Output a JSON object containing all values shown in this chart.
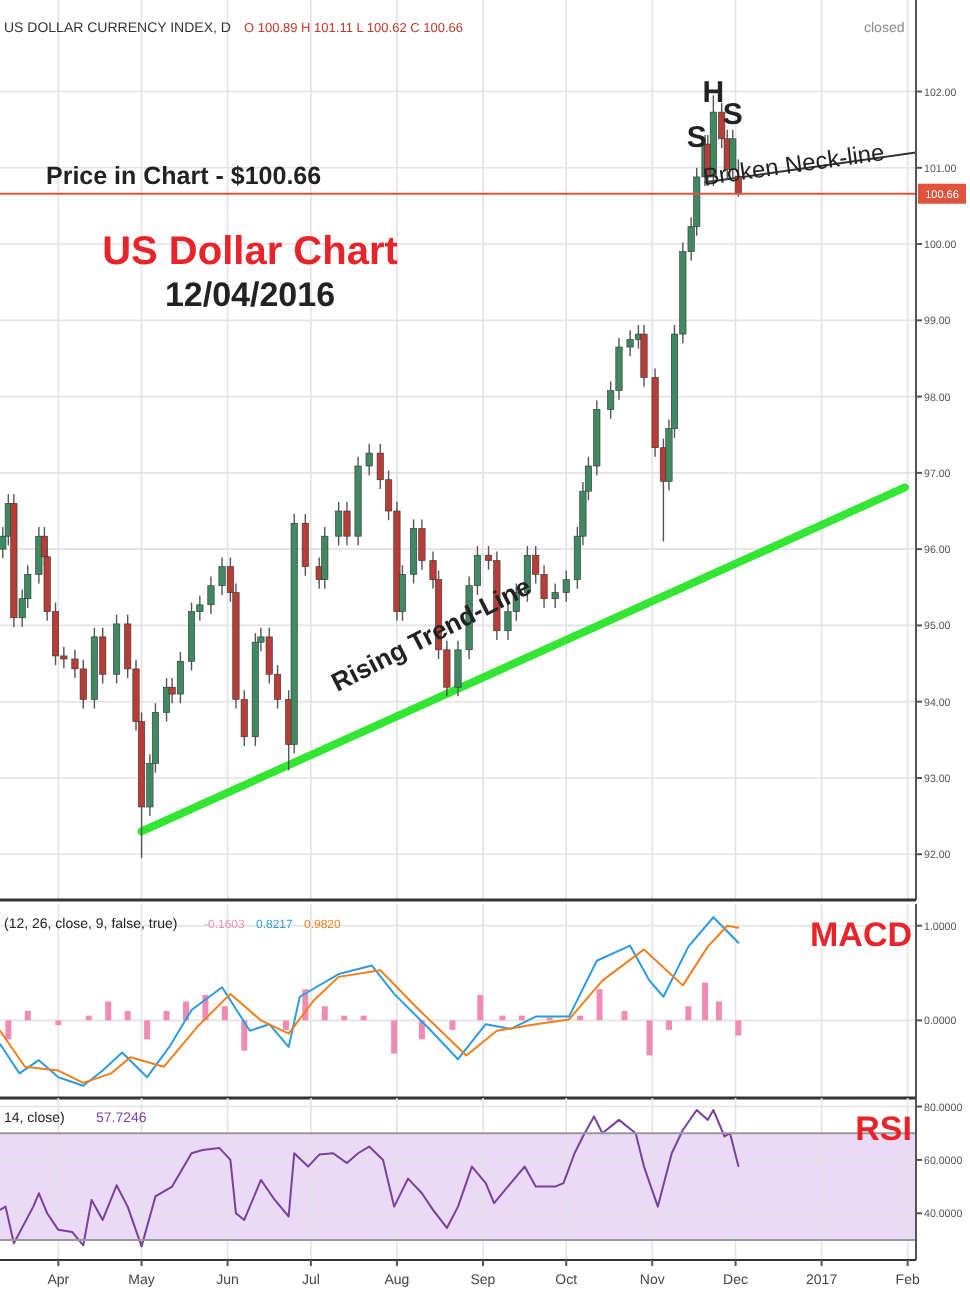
{
  "chart_data": [
    {
      "type": "candlestick",
      "title": "US Dollar Chart",
      "subtitle": "12/04/2016",
      "grid": true,
      "tick_labels": "y",
      "xlim": [
        "2016-03-11",
        "2017-02-04"
      ],
      "xticks": [
        {
          "value": "2016-04-01",
          "label": null
        },
        {
          "value": "2016-05-01",
          "label": null
        },
        {
          "value": "2016-06-01",
          "label": null
        },
        {
          "value": "2016-07-01",
          "label": null
        },
        {
          "value": "2016-08-01",
          "label": null
        },
        {
          "value": "2016-09-01",
          "label": null
        },
        {
          "value": "2016-10-01",
          "label": null
        },
        {
          "value": "2016-11-01",
          "label": null
        },
        {
          "value": "2016-12-01",
          "label": null
        },
        {
          "value": "2017-01-01",
          "label": null
        },
        {
          "value": "2017-02-01",
          "label": null
        }
      ],
      "ylim": [
        91.4,
        103.2
      ],
      "yticks": [
        {
          "value": 92,
          "label": "92.00"
        },
        {
          "value": 93,
          "label": "93.00"
        },
        {
          "value": 94,
          "label": "94.00"
        },
        {
          "value": 95,
          "label": "95.00"
        },
        {
          "value": 96,
          "label": "96.00"
        },
        {
          "value": 97,
          "label": "97.00"
        },
        {
          "value": 98,
          "label": "98.00"
        },
        {
          "value": 99,
          "label": "99.00"
        },
        {
          "value": 100,
          "label": "100.00"
        },
        {
          "value": 101,
          "label": "101.00"
        },
        {
          "value": 102,
          "label": "102.00"
        }
      ],
      "x": [
        "2016-03-12",
        "2016-03-14",
        "2016-03-16",
        "2016-03-19",
        "2016-03-21",
        "2016-03-25",
        "2016-03-27",
        "2016-03-28",
        "2016-03-31",
        "2016-04-03",
        "2016-04-07",
        "2016-04-10",
        "2016-04-14",
        "2016-04-17",
        "2016-04-22",
        "2016-04-26",
        "2016-04-29",
        "2016-05-01",
        "2016-05-04",
        "2016-05-06",
        "2016-05-10",
        "2016-05-12",
        "2016-05-15",
        "2016-05-19",
        "2016-05-22",
        "2016-05-26",
        "2016-05-30",
        "2016-06-02",
        "2016-06-04",
        "2016-06-07",
        "2016-06-11",
        "2016-06-13",
        "2016-06-16",
        "2016-06-19",
        "2016-06-23",
        "2016-06-25",
        "2016-06-29",
        "2016-07-04",
        "2016-07-06",
        "2016-07-11",
        "2016-07-14",
        "2016-07-18",
        "2016-07-22",
        "2016-07-26",
        "2016-07-29",
        "2016-08-01",
        "2016-08-03",
        "2016-08-07",
        "2016-08-10",
        "2016-08-14",
        "2016-08-16",
        "2016-08-19",
        "2016-08-23",
        "2016-08-27",
        "2016-08-30",
        "2016-09-03",
        "2016-09-06",
        "2016-09-10",
        "2016-09-13",
        "2016-09-17",
        "2016-09-20",
        "2016-09-23",
        "2016-09-27",
        "2016-10-01",
        "2016-10-05",
        "2016-10-07",
        "2016-10-09",
        "2016-10-12",
        "2016-10-17",
        "2016-10-20",
        "2016-10-24",
        "2016-10-27",
        "2016-10-29",
        "2016-11-02",
        "2016-11-05",
        "2016-11-07",
        "2016-11-09",
        "2016-11-12",
        "2016-11-15",
        "2016-11-17",
        "2016-11-20",
        "2016-11-21",
        "2016-11-23",
        "2016-11-26",
        "2016-11-28",
        "2016-11-30",
        "2016-12-02"
      ],
      "ohlc": [
        [
          96.0,
          96.29,
          95.88,
          96.17
        ],
        [
          96.17,
          96.72,
          96.05,
          96.6
        ],
        [
          96.6,
          96.72,
          94.98,
          95.1
        ],
        [
          95.1,
          95.47,
          94.98,
          95.35
        ],
        [
          95.35,
          95.79,
          95.23,
          95.67
        ],
        [
          95.67,
          96.29,
          95.55,
          96.17
        ],
        [
          96.17,
          96.29,
          95.78,
          95.9
        ],
        [
          95.9,
          96.02,
          95.06,
          95.18
        ],
        [
          95.18,
          95.3,
          94.48,
          94.6
        ],
        [
          94.6,
          94.72,
          94.44,
          94.56
        ],
        [
          94.56,
          94.68,
          94.31,
          94.43
        ],
        [
          94.43,
          94.55,
          93.91,
          94.03
        ],
        [
          94.03,
          94.97,
          93.91,
          94.85
        ],
        [
          94.85,
          94.97,
          94.24,
          94.36
        ],
        [
          94.36,
          95.14,
          94.24,
          95.02
        ],
        [
          95.02,
          95.14,
          94.31,
          94.43
        ],
        [
          94.43,
          94.55,
          93.62,
          93.74
        ],
        [
          93.74,
          93.86,
          91.95,
          92.62
        ],
        [
          92.62,
          93.31,
          92.5,
          93.19
        ],
        [
          93.19,
          93.98,
          93.07,
          93.86
        ],
        [
          93.86,
          94.31,
          93.74,
          94.19
        ],
        [
          94.19,
          94.31,
          93.98,
          94.1
        ],
        [
          94.1,
          94.65,
          93.98,
          94.53
        ],
        [
          94.53,
          95.3,
          94.41,
          95.18
        ],
        [
          95.18,
          95.39,
          95.06,
          95.27
        ],
        [
          95.27,
          95.64,
          95.15,
          95.52
        ],
        [
          95.52,
          95.89,
          95.4,
          95.77
        ],
        [
          95.77,
          95.89,
          95.31,
          95.43
        ],
        [
          95.43,
          95.55,
          93.91,
          94.03
        ],
        [
          94.03,
          94.15,
          93.42,
          93.54
        ],
        [
          93.54,
          94.9,
          93.42,
          94.78
        ],
        [
          94.78,
          94.97,
          94.66,
          94.85
        ],
        [
          94.85,
          94.97,
          94.24,
          94.36
        ],
        [
          94.36,
          94.48,
          93.91,
          94.03
        ],
        [
          94.03,
          94.15,
          93.1,
          93.44
        ],
        [
          93.44,
          96.46,
          93.32,
          96.34
        ],
        [
          96.34,
          96.46,
          95.65,
          95.77
        ],
        [
          95.77,
          95.89,
          95.48,
          95.6
        ],
        [
          95.6,
          96.29,
          95.48,
          96.17
        ],
        [
          96.17,
          96.62,
          96.05,
          96.5
        ],
        [
          96.5,
          96.62,
          96.05,
          96.17
        ],
        [
          96.17,
          97.21,
          96.05,
          97.09
        ],
        [
          97.09,
          97.38,
          96.97,
          97.26
        ],
        [
          97.26,
          97.38,
          96.79,
          96.91
        ],
        [
          96.91,
          97.03,
          96.38,
          96.5
        ],
        [
          96.5,
          96.62,
          95.06,
          95.18
        ],
        [
          95.18,
          95.79,
          95.06,
          95.67
        ],
        [
          95.67,
          96.39,
          95.55,
          96.27
        ],
        [
          96.27,
          96.39,
          95.73,
          95.85
        ],
        [
          95.85,
          95.97,
          95.48,
          95.6
        ],
        [
          95.6,
          95.72,
          94.56,
          94.68
        ],
        [
          94.68,
          94.8,
          94.07,
          94.19
        ],
        [
          94.19,
          94.8,
          94.07,
          94.68
        ],
        [
          94.68,
          95.64,
          94.56,
          95.52
        ],
        [
          95.52,
          96.04,
          95.4,
          95.92
        ],
        [
          95.92,
          96.04,
          95.73,
          95.85
        ],
        [
          95.85,
          95.97,
          94.81,
          94.93
        ],
        [
          94.93,
          95.3,
          94.81,
          95.18
        ],
        [
          95.18,
          95.55,
          95.06,
          95.43
        ],
        [
          95.43,
          96.04,
          95.31,
          95.92
        ],
        [
          95.92,
          96.04,
          95.55,
          95.67
        ],
        [
          95.67,
          95.79,
          95.23,
          95.35
        ],
        [
          95.35,
          95.55,
          95.23,
          95.43
        ],
        [
          95.43,
          95.72,
          95.31,
          95.6
        ],
        [
          95.6,
          96.29,
          95.48,
          96.17
        ],
        [
          96.17,
          96.88,
          96.05,
          96.76
        ],
        [
          96.76,
          97.21,
          96.64,
          97.09
        ],
        [
          97.09,
          97.95,
          96.97,
          97.83
        ],
        [
          97.83,
          98.2,
          97.71,
          98.08
        ],
        [
          98.08,
          98.77,
          97.96,
          98.65
        ],
        [
          98.65,
          98.87,
          98.53,
          98.75
        ],
        [
          98.75,
          98.94,
          98.63,
          98.82
        ],
        [
          98.82,
          98.94,
          98.13,
          98.25
        ],
        [
          98.25,
          98.37,
          97.21,
          97.33
        ],
        [
          97.33,
          97.45,
          96.1,
          96.89
        ],
        [
          96.89,
          97.7,
          96.77,
          97.58
        ],
        [
          97.58,
          98.94,
          97.46,
          98.82
        ],
        [
          98.82,
          100.02,
          98.7,
          99.9
        ],
        [
          99.9,
          100.35,
          99.78,
          100.23
        ],
        [
          100.23,
          101.0,
          100.11,
          100.88
        ],
        [
          100.88,
          101.43,
          100.76,
          101.31
        ],
        [
          101.31,
          101.43,
          100.76,
          100.88
        ],
        [
          100.88,
          101.95,
          100.76,
          101.73
        ],
        [
          101.73,
          101.85,
          101.26,
          101.38
        ],
        [
          101.38,
          101.5,
          100.86,
          100.98
        ],
        [
          100.98,
          101.5,
          100.86,
          101.38
        ],
        [
          100.89,
          101.11,
          100.62,
          100.66
        ]
      ],
      "series": [
        {
          "type": "line",
          "color": "#33e633",
          "x": [
            "2016-05-01",
            "2017-01-31"
          ],
          "values": [
            92.3,
            96.81
          ]
        },
        {
          "type": "line",
          "color": "#333333",
          "x": [
            "2016-11-20",
            "2017-02-04"
          ],
          "values": [
            100.81,
            101.2
          ]
        }
      ],
      "ref_lines": [
        {
          "axis": "y",
          "value": 100.66,
          "label": "Price in Chart - $100.66",
          "color": "#e0533f"
        }
      ],
      "annotations": [
        "US DOLLAR CURRENCY INDEX, D",
        "O 100.89 H 101.11 L 100.62 C 100.66",
        "closed",
        {
          "text": "S",
          "x": "2016-11-17",
          "y": 101.38
        },
        {
          "text": "H",
          "x": "2016-11-23",
          "y": 101.97
        },
        {
          "text": "S",
          "x": "2016-11-30",
          "y": 101.68
        },
        {
          "text": "Broken Neck-line",
          "x": "2016-12-22",
          "y": 101.02
        },
        "Rising Trend-Line",
        "100.66"
      ]
    },
    {
      "type": "line",
      "title": "MACD",
      "grid": true,
      "tick_labels": "y",
      "xlim": [
        "2016-03-11",
        "2017-02-04"
      ],
      "xticks": [
        {
          "value": "2016-04-01",
          "label": null
        },
        {
          "value": "2016-05-01",
          "label": null
        },
        {
          "value": "2016-06-01",
          "label": null
        },
        {
          "value": "2016-07-01",
          "label": null
        },
        {
          "value": "2016-08-01",
          "label": null
        },
        {
          "value": "2016-09-01",
          "label": null
        },
        {
          "value": "2016-10-01",
          "label": null
        },
        {
          "value": "2016-11-01",
          "label": null
        },
        {
          "value": "2016-12-01",
          "label": null
        },
        {
          "value": "2017-01-01",
          "label": null
        },
        {
          "value": "2017-02-01",
          "label": null
        }
      ],
      "ylim": [
        -0.82,
        1.23
      ],
      "yticks": [
        {
          "value": 0,
          "label": "0.0000"
        },
        {
          "value": 1,
          "label": "1.0000"
        }
      ],
      "series": [
        {
          "type": "bar",
          "color": "#f08cb4",
          "x": [
            "2016-03-14",
            "2016-03-21",
            "2016-04-01",
            "2016-04-12",
            "2016-04-19",
            "2016-04-26",
            "2016-05-03",
            "2016-05-10",
            "2016-05-17",
            "2016-05-24",
            "2016-05-31",
            "2016-06-07",
            "2016-06-14",
            "2016-06-22",
            "2016-06-29",
            "2016-07-06",
            "2016-07-13",
            "2016-07-20",
            "2016-07-31",
            "2016-08-10",
            "2016-08-21",
            "2016-08-31",
            "2016-09-08",
            "2016-09-15",
            "2016-09-25",
            "2016-10-06",
            "2016-10-13",
            "2016-10-22",
            "2016-10-31",
            "2016-11-07",
            "2016-11-14",
            "2016-11-20",
            "2016-11-25",
            "2016-12-02"
          ],
          "values": [
            -0.2,
            0.1,
            -0.05,
            0.05,
            0.2,
            0.1,
            -0.2,
            0.1,
            0.2,
            0.27,
            0.15,
            -0.32,
            0.0,
            -0.1,
            0.33,
            0.15,
            0.05,
            0.05,
            -0.35,
            -0.2,
            -0.1,
            0.27,
            0.05,
            0.05,
            0.03,
            0.05,
            0.33,
            0.1,
            -0.37,
            -0.1,
            0.15,
            0.4,
            0.2,
            -0.16
          ]
        },
        {
          "type": "line",
          "color": "#2e9be0",
          "x": [
            "2016-03-11",
            "2016-03-18",
            "2016-03-25",
            "2016-04-01",
            "2016-04-10",
            "2016-04-17",
            "2016-04-24",
            "2016-05-03",
            "2016-05-11",
            "2016-05-19",
            "2016-05-30",
            "2016-06-09",
            "2016-06-16",
            "2016-06-23",
            "2016-06-27",
            "2016-07-11",
            "2016-07-23",
            "2016-07-31",
            "2016-08-12",
            "2016-08-23",
            "2016-09-02",
            "2016-09-11",
            "2016-09-20",
            "2016-10-02",
            "2016-10-12",
            "2016-10-24",
            "2016-10-31",
            "2016-11-05",
            "2016-11-14",
            "2016-11-23",
            "2016-12-02"
          ],
          "values": [
            -0.25,
            -0.56,
            -0.42,
            -0.6,
            -0.69,
            -0.53,
            -0.34,
            -0.6,
            -0.28,
            0.11,
            0.35,
            -0.11,
            -0.04,
            -0.28,
            0.25,
            0.49,
            0.58,
            0.28,
            -0.07,
            -0.41,
            -0.04,
            -0.09,
            0.04,
            0.04,
            0.63,
            0.79,
            0.42,
            0.25,
            0.78,
            1.09,
            0.82
          ]
        },
        {
          "type": "line",
          "color": "#f07f1e",
          "x": [
            "2016-03-11",
            "2016-03-20",
            "2016-04-01",
            "2016-04-10",
            "2016-04-20",
            "2016-04-27",
            "2016-05-09",
            "2016-05-21",
            "2016-06-02",
            "2016-06-13",
            "2016-06-23",
            "2016-07-02",
            "2016-07-11",
            "2016-07-26",
            "2016-08-09",
            "2016-08-26",
            "2016-09-06",
            "2016-09-20",
            "2016-10-02",
            "2016-10-14",
            "2016-10-29",
            "2016-11-12",
            "2016-11-21",
            "2016-11-28",
            "2016-12-02"
          ],
          "values": [
            -0.11,
            -0.49,
            -0.53,
            -0.66,
            -0.56,
            -0.39,
            -0.49,
            -0.07,
            0.28,
            0.0,
            -0.14,
            0.21,
            0.46,
            0.53,
            0.11,
            -0.37,
            -0.11,
            -0.04,
            0.01,
            0.42,
            0.75,
            0.37,
            0.78,
            1.0,
            0.98
          ]
        }
      ],
      "annotations": [
        "(12, 26, close, 9, false, true)",
        "-0.1603",
        "0.8217",
        "0.9820"
      ]
    },
    {
      "type": "line",
      "title": "RSI",
      "grid": true,
      "xlim": [
        "2016-03-11",
        "2017-02-04"
      ],
      "xticks": [
        {
          "value": "2016-04-01",
          "label": "Apr"
        },
        {
          "value": "2016-05-01",
          "label": "May"
        },
        {
          "value": "2016-06-01",
          "label": "Jun"
        },
        {
          "value": "2016-07-01",
          "label": "Jul"
        },
        {
          "value": "2016-08-01",
          "label": "Aug"
        },
        {
          "value": "2016-09-01",
          "label": "Sep"
        },
        {
          "value": "2016-10-01",
          "label": "Oct"
        },
        {
          "value": "2016-11-01",
          "label": "Nov"
        },
        {
          "value": "2016-12-01",
          "label": "Dec"
        },
        {
          "value": "2017-01-01",
          "label": "2017"
        },
        {
          "value": "2017-02-01",
          "label": "Feb"
        }
      ],
      "ylim": [
        22.5,
        83.2
      ],
      "yticks": [
        {
          "value": 40,
          "label": "40.0000"
        },
        {
          "value": 60,
          "label": "60.0000"
        },
        {
          "value": 80,
          "label": "80.0000"
        }
      ],
      "bands": [
        {
          "axis": "y",
          "from": 30,
          "to": 70,
          "color": "#ead9f7"
        }
      ],
      "ref_lines": [
        {
          "axis": "y",
          "value": 70,
          "color": "#999999"
        },
        {
          "axis": "y",
          "value": 30,
          "color": "#999999"
        }
      ],
      "series": [
        {
          "color": "#7b3f9e",
          "x": [
            "2016-03-11",
            "2016-03-13",
            "2016-03-16",
            "2016-03-23",
            "2016-03-25",
            "2016-03-28",
            "2016-04-01",
            "2016-04-06",
            "2016-04-10",
            "2016-04-13",
            "2016-04-17",
            "2016-04-22",
            "2016-04-26",
            "2016-05-01",
            "2016-05-06",
            "2016-05-12",
            "2016-05-19",
            "2016-05-23",
            "2016-05-29",
            "2016-06-02",
            "2016-06-04",
            "2016-06-07",
            "2016-06-13",
            "2016-06-18",
            "2016-06-23",
            "2016-06-25",
            "2016-06-30",
            "2016-07-04",
            "2016-07-09",
            "2016-07-14",
            "2016-07-18",
            "2016-07-22",
            "2016-07-27",
            "2016-07-31",
            "2016-08-05",
            "2016-08-10",
            "2016-08-14",
            "2016-08-19",
            "2016-08-23",
            "2016-08-28",
            "2016-09-02",
            "2016-09-05",
            "2016-09-11",
            "2016-09-16",
            "2016-09-20",
            "2016-09-27",
            "2016-09-30",
            "2016-10-04",
            "2016-10-07",
            "2016-10-11",
            "2016-10-14",
            "2016-10-20",
            "2016-10-26",
            "2016-10-29",
            "2016-11-03",
            "2016-11-08",
            "2016-11-12",
            "2016-11-17",
            "2016-11-21",
            "2016-11-23",
            "2016-11-27",
            "2016-11-29",
            "2016-12-02"
          ],
          "values": [
            41.3,
            42.5,
            28.8,
            42.5,
            47.5,
            40,
            33.8,
            33,
            28,
            45,
            37.5,
            50.5,
            42.5,
            27.6,
            46.3,
            50,
            62.5,
            63.7,
            64.5,
            60,
            40,
            37.5,
            52.5,
            45,
            38.8,
            62.5,
            57.5,
            62,
            62.5,
            58.8,
            62.5,
            65,
            60,
            42.5,
            53,
            47.5,
            41.3,
            34.5,
            42.5,
            57.5,
            51.3,
            43.8,
            51.3,
            57.5,
            50,
            50,
            51.3,
            62.5,
            68.8,
            76.3,
            70,
            75,
            70,
            57.5,
            42.5,
            62.5,
            71.2,
            78.7,
            75,
            78.7,
            68.8,
            70,
            57.7
          ]
        }
      ],
      "annotations": [
        "14, close)",
        "57.7246"
      ]
    }
  ]
}
